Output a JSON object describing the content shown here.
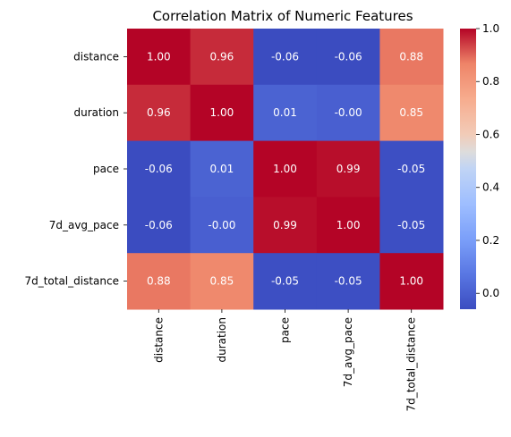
{
  "chart_data": {
    "type": "heatmap",
    "title": "Correlation Matrix of Numeric Features",
    "xlabel": "",
    "ylabel": "",
    "x_categories": [
      "distance",
      "duration",
      "pace",
      "7d_avg_pace",
      "7d_total_distance"
    ],
    "y_categories": [
      "distance",
      "duration",
      "pace",
      "7d_avg_pace",
      "7d_total_distance"
    ],
    "values": [
      [
        1.0,
        0.96,
        -0.06,
        -0.06,
        0.88
      ],
      [
        0.96,
        1.0,
        0.01,
        -0.0,
        0.85
      ],
      [
        -0.06,
        0.01,
        1.0,
        0.99,
        -0.05
      ],
      [
        -0.06,
        -0.0,
        0.99,
        1.0,
        -0.05
      ],
      [
        0.88,
        0.85,
        -0.05,
        -0.05,
        1.0
      ]
    ],
    "annotation_format": "0.00",
    "colormap": "coolwarm",
    "color_range": [
      -0.06,
      1.0
    ],
    "colorbar_ticks": [
      "0.0",
      "0.2",
      "0.4",
      "0.6",
      "0.8",
      "1.0"
    ],
    "colorbar_tick_values": [
      0.0,
      0.2,
      0.4,
      0.6,
      0.8,
      1.0
    ],
    "colorbar_position": "right",
    "grid": false
  }
}
